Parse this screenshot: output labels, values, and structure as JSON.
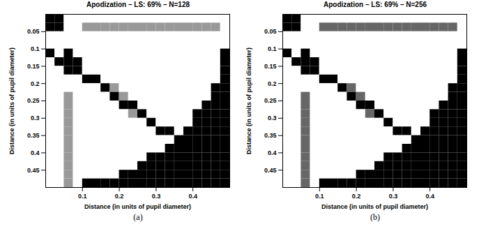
{
  "chart_data": [
    {
      "type": "heatmap",
      "title": "Apodization – LS: 69% – N=128",
      "caption": "(a)",
      "x_label": "Distance (in units of pupil diameter)",
      "y_label": "Distance (in units of pupil diameter)",
      "xlim": [
        0,
        0.5
      ],
      "ylim": [
        0.5,
        0
      ],
      "xticks": [
        0.1,
        0.2,
        0.3,
        0.4
      ],
      "yticks": [
        0.05,
        0.1,
        0.15,
        0.2,
        0.25,
        0.3,
        0.35,
        0.4,
        0.45
      ],
      "cell_range": [
        0,
        1
      ],
      "x": [
        0.0125,
        0.0375,
        0.0625,
        0.0875,
        0.1125,
        0.1375,
        0.1625,
        0.1875,
        0.2125,
        0.2375,
        0.2625,
        0.2875,
        0.3125,
        0.3375,
        0.3625,
        0.3875,
        0.4125,
        0.4375,
        0.4625,
        0.4875
      ],
      "y": [
        0.0125,
        0.0375,
        0.0625,
        0.0875,
        0.1125,
        0.1375,
        0.1625,
        0.1875,
        0.2125,
        0.2375,
        0.2625,
        0.2875,
        0.3125,
        0.3375,
        0.3625,
        0.3875,
        0.4125,
        0.4375,
        0.4625,
        0.4875
      ],
      "cells": [
        [
          0,
          0,
          1,
          1,
          1,
          1,
          1,
          1,
          1,
          1,
          1,
          1,
          1,
          1,
          1,
          1,
          1,
          1,
          1,
          1
        ],
        [
          0,
          0,
          1,
          1,
          0.6,
          0.6,
          0.6,
          0.6,
          0.6,
          0.6,
          0.6,
          0.6,
          0.6,
          0.6,
          0.6,
          0.6,
          0.6,
          0.6,
          0.6,
          1
        ],
        [
          1,
          1,
          1,
          1,
          1,
          1,
          1,
          1,
          1,
          1,
          1,
          1,
          1,
          1,
          1,
          1,
          1,
          1,
          1,
          1
        ],
        [
          1,
          1,
          1,
          1,
          1,
          1,
          1,
          1,
          1,
          1,
          1,
          1,
          1,
          1,
          1,
          1,
          1,
          1,
          1,
          1
        ],
        [
          0,
          1,
          0,
          1,
          1,
          1,
          1,
          1,
          1,
          1,
          1,
          1,
          1,
          1,
          1,
          1,
          1,
          1,
          1,
          0
        ],
        [
          1,
          0,
          0,
          0,
          1,
          1,
          1,
          1,
          1,
          1,
          1,
          1,
          1,
          1,
          1,
          1,
          1,
          1,
          1,
          0
        ],
        [
          1,
          1,
          0,
          0,
          1,
          1,
          1,
          1,
          1,
          1,
          1,
          1,
          1,
          1,
          1,
          1,
          1,
          1,
          1,
          0
        ],
        [
          1,
          1,
          1,
          1,
          0,
          0,
          1,
          1,
          1,
          1,
          1,
          1,
          1,
          1,
          1,
          1,
          1,
          1,
          1,
          0
        ],
        [
          1,
          1,
          1,
          1,
          1,
          1,
          0,
          0.6,
          1,
          1,
          1,
          1,
          1,
          1,
          1,
          1,
          1,
          1,
          0,
          0
        ],
        [
          1,
          1,
          0.6,
          1,
          1,
          1,
          1,
          0,
          0.6,
          1,
          1,
          1,
          1,
          1,
          1,
          1,
          1,
          1,
          0,
          0
        ],
        [
          1,
          1,
          0.6,
          1,
          1,
          1,
          1,
          1,
          0,
          0,
          1,
          1,
          1,
          1,
          1,
          1,
          1,
          0,
          0,
          0
        ],
        [
          1,
          1,
          0.6,
          1,
          1,
          1,
          1,
          1,
          1,
          0.6,
          0,
          1,
          1,
          1,
          1,
          1,
          0,
          0,
          0,
          0
        ],
        [
          1,
          1,
          0.6,
          1,
          1,
          1,
          1,
          1,
          1,
          1,
          1,
          0,
          1,
          1,
          1,
          1,
          0,
          0,
          0,
          0
        ],
        [
          1,
          1,
          0.6,
          1,
          1,
          1,
          1,
          1,
          1,
          1,
          1,
          1,
          0,
          0,
          1,
          0,
          0,
          0,
          0,
          0
        ],
        [
          1,
          1,
          0.6,
          1,
          1,
          1,
          1,
          1,
          1,
          1,
          1,
          1,
          1,
          1,
          0,
          0,
          0,
          0,
          0,
          0
        ],
        [
          1,
          1,
          0.6,
          1,
          1,
          1,
          1,
          1,
          1,
          1,
          1,
          1,
          1,
          0,
          0,
          0,
          0,
          0,
          0,
          0
        ],
        [
          1,
          1,
          0.6,
          1,
          1,
          1,
          1,
          1,
          1,
          1,
          1,
          0,
          0,
          0,
          0,
          0,
          0,
          0,
          0,
          0
        ],
        [
          1,
          1,
          0.6,
          1,
          1,
          1,
          1,
          1,
          1,
          1,
          0,
          0,
          0,
          0,
          0,
          0,
          0,
          0,
          0,
          0
        ],
        [
          1,
          1,
          0.6,
          1,
          1,
          1,
          1,
          1,
          0,
          0,
          0,
          0,
          0,
          0,
          0,
          0,
          0,
          0,
          0,
          0
        ],
        [
          1,
          1,
          0.6,
          1,
          0,
          0,
          0,
          0,
          0,
          0,
          0,
          0,
          0,
          0,
          0,
          0,
          0,
          0,
          0,
          0
        ]
      ]
    },
    {
      "type": "heatmap",
      "title": "Apodization – LS: 69% – N=256",
      "caption": "(b)",
      "x_label": "Distance (in units of pupil diameter)",
      "y_label": "Distance (in units of pupil diameter)",
      "xlim": [
        0,
        0.5
      ],
      "ylim": [
        0.5,
        0
      ],
      "xticks": [
        0.1,
        0.2,
        0.3,
        0.4
      ],
      "yticks": [
        0.05,
        0.1,
        0.15,
        0.2,
        0.25,
        0.3,
        0.35,
        0.4,
        0.45
      ],
      "cell_range": [
        0,
        1
      ],
      "x": [
        0.0125,
        0.0375,
        0.0625,
        0.0875,
        0.1125,
        0.1375,
        0.1625,
        0.1875,
        0.2125,
        0.2375,
        0.2625,
        0.2875,
        0.3125,
        0.3375,
        0.3625,
        0.3875,
        0.4125,
        0.4375,
        0.4625,
        0.4875
      ],
      "y": [
        0.0125,
        0.0375,
        0.0625,
        0.0875,
        0.1125,
        0.1375,
        0.1625,
        0.1875,
        0.2125,
        0.2375,
        0.2625,
        0.2875,
        0.3125,
        0.3375,
        0.3625,
        0.3875,
        0.4125,
        0.4375,
        0.4625,
        0.4875
      ],
      "cells": [
        [
          0,
          0,
          1,
          1,
          1,
          1,
          1,
          1,
          1,
          1,
          1,
          1,
          1,
          1,
          1,
          1,
          1,
          1,
          1,
          1
        ],
        [
          0,
          0,
          1,
          1,
          0.4,
          0.4,
          0.4,
          0.4,
          0.4,
          0.4,
          0.4,
          0.4,
          0.4,
          0.4,
          0.4,
          0.4,
          0.4,
          0.4,
          0.4,
          1
        ],
        [
          1,
          1,
          1,
          1,
          1,
          1,
          1,
          1,
          1,
          1,
          1,
          1,
          1,
          1,
          1,
          1,
          1,
          1,
          1,
          1
        ],
        [
          1,
          1,
          1,
          1,
          1,
          1,
          1,
          1,
          1,
          1,
          1,
          1,
          1,
          1,
          1,
          1,
          1,
          1,
          1,
          1
        ],
        [
          0,
          1,
          0,
          1,
          1,
          1,
          1,
          1,
          1,
          1,
          1,
          1,
          1,
          1,
          1,
          1,
          1,
          1,
          1,
          0
        ],
        [
          1,
          0,
          0,
          0,
          1,
          1,
          1,
          1,
          1,
          1,
          1,
          1,
          1,
          1,
          1,
          1,
          1,
          1,
          1,
          0
        ],
        [
          1,
          1,
          0,
          0,
          1,
          1,
          1,
          1,
          1,
          1,
          1,
          1,
          1,
          1,
          1,
          1,
          1,
          1,
          1,
          0
        ],
        [
          1,
          1,
          1,
          1,
          0,
          0,
          1,
          1,
          1,
          1,
          1,
          1,
          1,
          1,
          1,
          1,
          1,
          1,
          1,
          0
        ],
        [
          1,
          1,
          1,
          1,
          1,
          1,
          0,
          0.4,
          1,
          1,
          1,
          1,
          1,
          1,
          1,
          1,
          1,
          1,
          0,
          0
        ],
        [
          1,
          1,
          0.4,
          1,
          1,
          1,
          1,
          0,
          0.4,
          1,
          1,
          1,
          1,
          1,
          1,
          1,
          1,
          1,
          0,
          0
        ],
        [
          1,
          1,
          0.4,
          1,
          1,
          1,
          1,
          1,
          0,
          0,
          1,
          1,
          1,
          1,
          1,
          1,
          1,
          0,
          0,
          0
        ],
        [
          1,
          1,
          0.4,
          1,
          1,
          1,
          1,
          1,
          1,
          0.4,
          0,
          1,
          1,
          1,
          1,
          1,
          0,
          0,
          0,
          0
        ],
        [
          1,
          1,
          0.4,
          1,
          1,
          1,
          1,
          1,
          1,
          1,
          1,
          0,
          1,
          1,
          1,
          1,
          0,
          0,
          0,
          0
        ],
        [
          1,
          1,
          0.4,
          1,
          1,
          1,
          1,
          1,
          1,
          1,
          1,
          1,
          0,
          0,
          1,
          0,
          0,
          0,
          0,
          0
        ],
        [
          1,
          1,
          0.4,
          1,
          1,
          1,
          1,
          1,
          1,
          1,
          1,
          1,
          1,
          1,
          0,
          0,
          0,
          0,
          0,
          0
        ],
        [
          1,
          1,
          0.4,
          1,
          1,
          1,
          1,
          1,
          1,
          1,
          1,
          1,
          1,
          0,
          0,
          0,
          0,
          0,
          0,
          0
        ],
        [
          1,
          1,
          0.4,
          1,
          1,
          1,
          1,
          1,
          1,
          1,
          1,
          0,
          0,
          0,
          0,
          0,
          0,
          0,
          0,
          0
        ],
        [
          1,
          1,
          0.4,
          1,
          1,
          1,
          1,
          1,
          1,
          1,
          0,
          0,
          0,
          0,
          0,
          0,
          0,
          0,
          0,
          0
        ],
        [
          1,
          1,
          0.4,
          1,
          1,
          1,
          1,
          1,
          0,
          0,
          0,
          0,
          0,
          0,
          0,
          0,
          0,
          0,
          0,
          0
        ],
        [
          1,
          1,
          0.4,
          1,
          0,
          0,
          0,
          0,
          0,
          0,
          0,
          0,
          0,
          0,
          0,
          0,
          0,
          0,
          0,
          0
        ]
      ]
    }
  ]
}
